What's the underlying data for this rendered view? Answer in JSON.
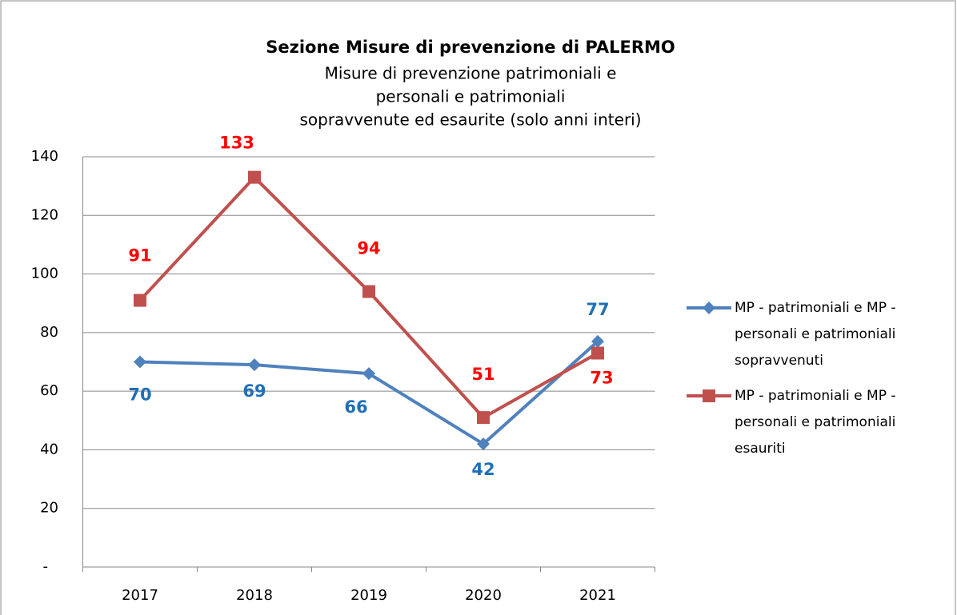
{
  "chart_data": {
    "type": "line",
    "title": "Sezione Misure di prevenzione di PALERMO",
    "subtitle": [
      "Misure di prevenzione patrimoniali e",
      "personali e patrimoniali",
      "sopravvenute ed esaurite (solo anni interi)"
    ],
    "categories": [
      "2017",
      "2018",
      "2019",
      "2020",
      "2021"
    ],
    "series": [
      {
        "name": "MP - patrimoniali e MP - personali e patrimoniali sopravvenuti",
        "color": "#4f81bd",
        "label_color": "#1f6fb8",
        "marker": "diamond",
        "values": [
          70,
          69,
          66,
          42,
          77
        ]
      },
      {
        "name": "MP - patrimoniali e MP - personali e patrimoniali esauriti",
        "color": "#c0504d",
        "label_color": "#ff0000",
        "marker": "square",
        "values": [
          91,
          133,
          94,
          51,
          73
        ]
      }
    ],
    "ylim": [
      0,
      140
    ],
    "yticks": [
      {
        "value": 0,
        "label": "-"
      },
      20,
      40,
      60,
      80,
      100,
      120,
      140
    ],
    "grid": true,
    "legend": "right"
  }
}
